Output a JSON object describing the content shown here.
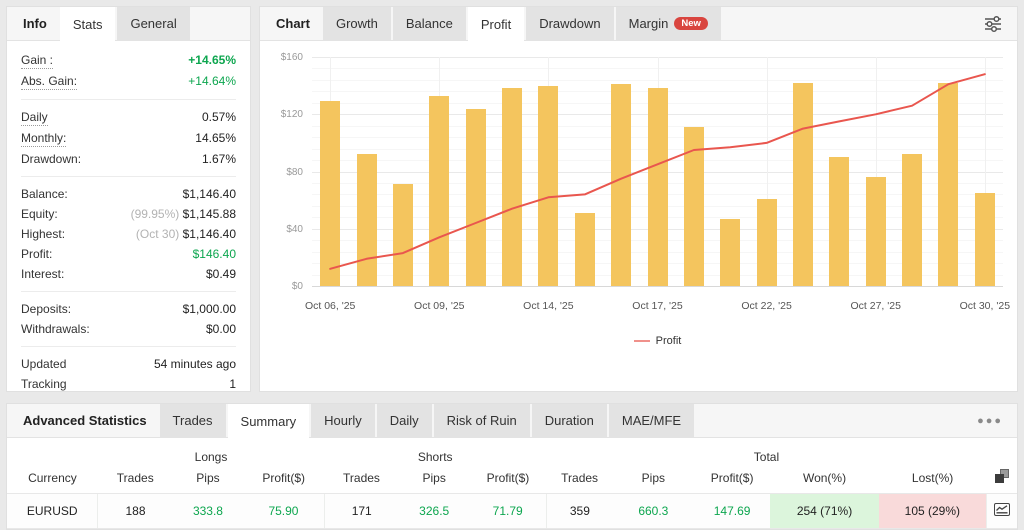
{
  "info_panel": {
    "title": "Info",
    "tabs": [
      {
        "label": "Stats",
        "active": true
      },
      {
        "label": "General",
        "active": false
      }
    ],
    "groups": [
      [
        {
          "label": "Gain :",
          "value": "+14.65%",
          "value_style": "green-bold",
          "underline": "dotted"
        },
        {
          "label": "Abs. Gain:",
          "value": "+14.64%",
          "value_style": "green",
          "underline": "dotted"
        }
      ],
      [
        {
          "label": "Daily",
          "value": "0.57%",
          "underline": "dotted"
        },
        {
          "label": "Monthly:",
          "value": "14.65%",
          "underline": "dotted"
        },
        {
          "label": "Drawdown:",
          "value": "1.67%"
        }
      ],
      [
        {
          "label": "Balance:",
          "value": "$1,146.40"
        },
        {
          "label": "Equity:",
          "prefix": "(99.95%) ",
          "value": "$1,145.88"
        },
        {
          "label": "Highest:",
          "prefix": "(Oct 30) ",
          "value": "$1,146.40"
        },
        {
          "label": "Profit:",
          "value": "$146.40",
          "value_style": "green"
        },
        {
          "label": "Interest:",
          "value": "$0.49"
        }
      ],
      [
        {
          "label": "Deposits:",
          "value": "$1,000.00"
        },
        {
          "label": "Withdrawals:",
          "value": "$0.00"
        }
      ],
      [
        {
          "label": "Updated",
          "value": "54 minutes ago"
        },
        {
          "label": "Tracking",
          "value": "1"
        }
      ]
    ]
  },
  "chart_panel": {
    "title": "Chart",
    "tabs": [
      {
        "label": "Growth"
      },
      {
        "label": "Balance"
      },
      {
        "label": "Profit",
        "active": true
      },
      {
        "label": "Drawdown"
      },
      {
        "label": "Margin",
        "badge": "New"
      }
    ],
    "toolbar_icon": "filter-sliders-icon"
  },
  "chart_data": {
    "type": "bar+line",
    "ylim": [
      0,
      160
    ],
    "y_tick_labels": [
      "$0",
      "$40",
      "$80",
      "$120",
      "$160"
    ],
    "x_tick_labels": [
      "Oct 06, '25",
      "Oct 09, '25",
      "Oct 14, '25",
      "Oct 17, '25",
      "Oct 22, '25",
      "Oct 27, '25",
      "Oct 30, '25"
    ],
    "x_tick_every": 3,
    "bars": [
      129,
      92,
      71,
      133,
      124,
      138,
      140,
      51,
      141,
      138,
      111,
      47,
      61,
      142,
      90,
      76,
      92,
      142,
      65
    ],
    "line_series_name": "Profit",
    "line": [
      12,
      19,
      23,
      34,
      44,
      54,
      62,
      64,
      75,
      85,
      95,
      97,
      100,
      110,
      115,
      120,
      126,
      141,
      148
    ],
    "bar_color": "#f4c55e",
    "line_color": "#e9564e",
    "legend_label": "Profit",
    "legend_marker_color": "#f0918b",
    "grid": true,
    "legend_position": "bottom"
  },
  "stats_panel": {
    "title": "Advanced Statistics",
    "tabs": [
      {
        "label": "Trades"
      },
      {
        "label": "Summary",
        "active": true
      },
      {
        "label": "Hourly"
      },
      {
        "label": "Daily"
      },
      {
        "label": "Risk of Ruin"
      },
      {
        "label": "Duration"
      },
      {
        "label": "MAE/MFE"
      }
    ],
    "menu_icon": "ellipsis-icon",
    "table": {
      "group_headers": [
        {
          "label": "",
          "span": 1
        },
        {
          "label": "Longs",
          "span": 3
        },
        {
          "label": "Shorts",
          "span": 3
        },
        {
          "label": "Total",
          "span": 5
        },
        {
          "label": "",
          "span": 1
        }
      ],
      "columns": [
        "Currency",
        "Trades",
        "Pips",
        "Profit($)",
        "Trades",
        "Pips",
        "Profit($)",
        "Trades",
        "Pips",
        "Profit($)",
        "Won(%)",
        "Lost(%)"
      ],
      "header_icon": "copy-icon",
      "row_icon": "open-chart-icon",
      "rows": [
        {
          "cells": [
            {
              "text": "EURUSD"
            },
            {
              "text": "188"
            },
            {
              "text": "333.8",
              "style": "green"
            },
            {
              "text": "75.90",
              "style": "green"
            },
            {
              "text": "171"
            },
            {
              "text": "326.5",
              "style": "green"
            },
            {
              "text": "71.79",
              "style": "green"
            },
            {
              "text": "359"
            },
            {
              "text": "660.3",
              "style": "green"
            },
            {
              "text": "147.69",
              "style": "green"
            },
            {
              "text": "254 (71%)",
              "style": "won"
            },
            {
              "text": "105 (29%)",
              "style": "lost"
            }
          ]
        }
      ]
    }
  },
  "status_colors": {
    "green": "#0da64f",
    "won_bg": "#dcf5dc",
    "lost_bg": "#f9dada",
    "new_badge": "#d9453f"
  }
}
